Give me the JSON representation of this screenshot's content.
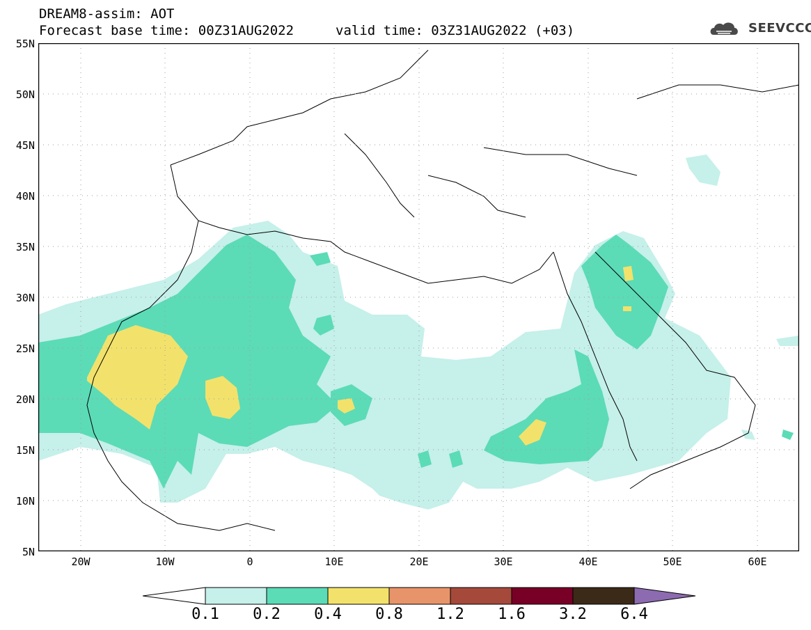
{
  "header": {
    "title_line1": "DREAM8-assim: AOT",
    "title_line2": "Forecast base time: 00Z31AUG2022",
    "valid_time": "valid time: 03Z31AUG2022 (+03)",
    "logo_text": "SEEVCCC"
  },
  "map": {
    "lat_labels": [
      "55N",
      "50N",
      "45N",
      "40N",
      "35N",
      "30N",
      "25N",
      "20N",
      "15N",
      "10N",
      "5N"
    ],
    "lon_labels": [
      "20W",
      "10W",
      "0",
      "10E",
      "20E",
      "30E",
      "40E",
      "50E",
      "60E"
    ],
    "lon_range": [
      -25,
      65
    ],
    "lat_range": [
      5,
      55
    ],
    "colors": {
      "level_0_1": "#c6f0ea",
      "level_0_2": "#5cdbb7",
      "level_0_4": "#f2e26b",
      "coast": "#000000",
      "grid": "#9e9e9e"
    }
  },
  "colorbar": {
    "ticks": [
      "0.1",
      "0.2",
      "0.4",
      "0.8",
      "1.2",
      "1.6",
      "3.2",
      "6.4"
    ],
    "colors": [
      "#c6f0ea",
      "#5cdbb7",
      "#f2e26b",
      "#e8946a",
      "#a5493b",
      "#780026",
      "#3b2a18",
      "#8c6bb1"
    ]
  }
}
